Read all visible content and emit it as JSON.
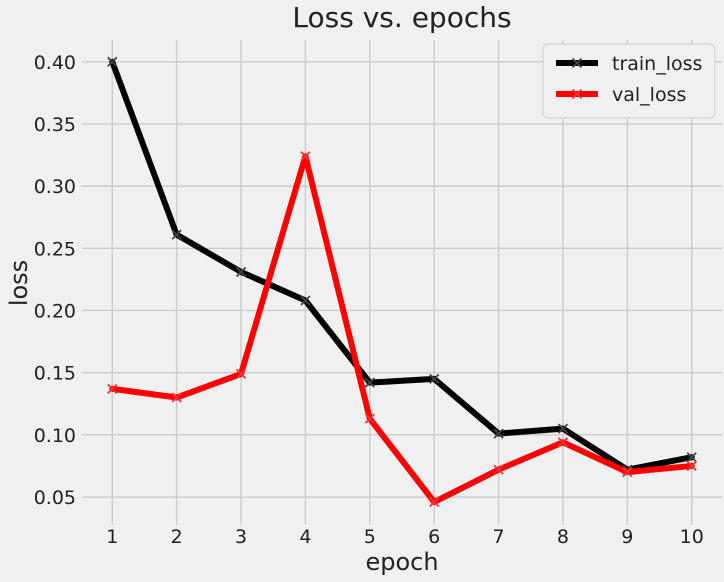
{
  "chart_data": {
    "type": "line",
    "title": "Loss vs. epochs",
    "xlabel": "epoch",
    "ylabel": "loss",
    "x": [
      1,
      2,
      3,
      4,
      5,
      6,
      7,
      8,
      9,
      10
    ],
    "xlim": [
      0.53,
      10.47
    ],
    "ylim": [
      0.0275,
      0.4175
    ],
    "xticks": [
      "1",
      "2",
      "3",
      "4",
      "5",
      "6",
      "7",
      "8",
      "9",
      "10"
    ],
    "yticks": [
      "0.05",
      "0.10",
      "0.15",
      "0.20",
      "0.25",
      "0.30",
      "0.35",
      "0.40"
    ],
    "grid": true,
    "legend_position": "top-right",
    "series": [
      {
        "name": "train_loss",
        "color": "#000000",
        "marker": "x",
        "values": [
          0.4,
          0.261,
          0.231,
          0.208,
          0.142,
          0.145,
          0.101,
          0.105,
          0.072,
          0.082
        ]
      },
      {
        "name": "val_loss",
        "color": "#ff0000",
        "marker": "x",
        "values": [
          0.137,
          0.13,
          0.149,
          0.324,
          0.113,
          0.046,
          0.072,
          0.094,
          0.07,
          0.075
        ]
      }
    ]
  }
}
